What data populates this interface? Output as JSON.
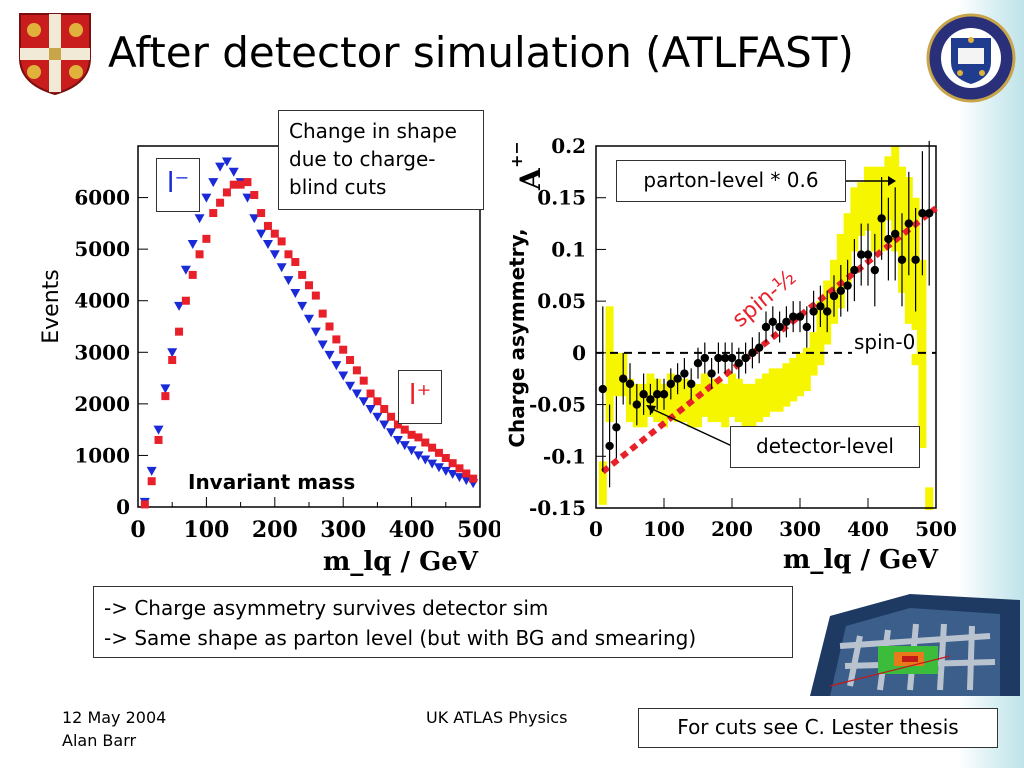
{
  "slide": {
    "title": "After detector simulation (ATLFAST)",
    "cuts_box": [
      "Change in shape",
      "due to charge-",
      "blind cuts"
    ],
    "bullets": [
      "-> Charge asymmetry survives detector sim",
      "-> Same shape as parton level (but with BG and smearing)"
    ],
    "footer_date": "12 May 2004",
    "footer_author": "Alan Barr",
    "footer_center": "UK ATLAS Physics",
    "footer_ref": "For cuts see C. Lester thesis",
    "colors": {
      "red": "#e8202a",
      "blue": "#1a2ad6",
      "yellow": "#f6f600"
    }
  },
  "chart_data": [
    {
      "type": "scatter",
      "title": "Invariant mass",
      "xlabel": "m_lq / GeV",
      "ylabel": "Events",
      "xlim": [
        0,
        500
      ],
      "ylim": [
        0,
        7000
      ],
      "xticks": [
        "0",
        "100",
        "200",
        "300",
        "400",
        "500"
      ],
      "yticks": [
        "0",
        "1000",
        "2000",
        "3000",
        "4000",
        "5000",
        "6000"
      ],
      "legend": [
        "l⁻",
        "l⁺"
      ],
      "x": [
        10,
        20,
        30,
        40,
        50,
        60,
        70,
        80,
        90,
        100,
        110,
        120,
        130,
        140,
        150,
        160,
        170,
        180,
        190,
        200,
        210,
        220,
        230,
        240,
        250,
        260,
        270,
        280,
        290,
        300,
        310,
        320,
        330,
        340,
        350,
        360,
        370,
        380,
        390,
        400,
        410,
        420,
        430,
        440,
        450,
        460,
        470,
        480,
        490
      ],
      "series": [
        {
          "name": "l⁻",
          "color": "blue",
          "marker": "triangle-down",
          "values": [
            100,
            700,
            1500,
            2300,
            3000,
            3900,
            4600,
            5100,
            5600,
            6000,
            6300,
            6600,
            6700,
            6500,
            6300,
            6000,
            5600,
            5300,
            5100,
            4900,
            4650,
            4400,
            4150,
            3900,
            3650,
            3400,
            3150,
            2950,
            2750,
            2550,
            2350,
            2200,
            2050,
            1900,
            1750,
            1600,
            1450,
            1300,
            1200,
            1100,
            1000,
            920,
            840,
            770,
            700,
            640,
            580,
            520,
            460
          ]
        },
        {
          "name": "l⁺",
          "color": "red",
          "marker": "square",
          "values": [
            50,
            500,
            1300,
            2150,
            2850,
            3400,
            4000,
            4500,
            4900,
            5200,
            5700,
            5900,
            6100,
            6250,
            6250,
            6300,
            6050,
            5700,
            5450,
            5300,
            5150,
            4900,
            4750,
            4500,
            4300,
            4100,
            3750,
            3500,
            3250,
            3050,
            2850,
            2650,
            2450,
            2200,
            2050,
            1900,
            1750,
            1600,
            1500,
            1400,
            1350,
            1250,
            1150,
            1050,
            950,
            850,
            750,
            650,
            550
          ]
        }
      ]
    },
    {
      "type": "scatter",
      "xlabel": "m_lq / GeV",
      "ylabel": "Charge asymmetry,",
      "ylabel_symbol": "A",
      "ylabel_sup": "+−",
      "xlim": [
        0,
        500
      ],
      "ylim": [
        -0.15,
        0.2
      ],
      "xticks": [
        "0",
        "100",
        "200",
        "300",
        "400",
        "500"
      ],
      "yticks": [
        "-0.15",
        "-0.1",
        "-0.05",
        "0",
        "0.05",
        "0.1",
        "0.15",
        "0.2"
      ],
      "annotations": {
        "parton": "parton-level * 0.6",
        "spin_half": "spin-½",
        "spin_zero": "spin-0",
        "detector": "detector-level"
      },
      "detector_level": {
        "x": [
          10,
          20,
          30,
          40,
          50,
          60,
          70,
          80,
          90,
          100,
          110,
          120,
          130,
          140,
          150,
          160,
          170,
          180,
          190,
          200,
          210,
          220,
          230,
          240,
          250,
          260,
          270,
          280,
          290,
          300,
          310,
          320,
          330,
          340,
          350,
          360,
          370,
          380,
          390,
          400,
          410,
          420,
          430,
          440,
          450,
          460,
          470,
          480,
          490
        ],
        "y": [
          -0.035,
          -0.09,
          -0.072,
          -0.025,
          -0.03,
          -0.05,
          -0.04,
          -0.045,
          -0.04,
          -0.04,
          -0.03,
          -0.025,
          -0.02,
          -0.03,
          -0.01,
          -0.005,
          -0.02,
          -0.005,
          -0.005,
          -0.005,
          -0.01,
          -0.005,
          0.0,
          0.005,
          0.025,
          0.03,
          0.025,
          0.03,
          0.035,
          0.035,
          0.025,
          0.04,
          0.045,
          0.04,
          0.055,
          0.06,
          0.065,
          0.08,
          0.095,
          0.095,
          0.08,
          0.13,
          0.11,
          0.115,
          0.09,
          0.125,
          0.09,
          0.135,
          0.135
        ],
        "err": [
          0.08,
          0.04,
          0.03,
          0.025,
          0.02,
          0.02,
          0.02,
          0.015,
          0.015,
          0.015,
          0.015,
          0.015,
          0.015,
          0.015,
          0.015,
          0.015,
          0.015,
          0.015,
          0.015,
          0.015,
          0.015,
          0.015,
          0.015,
          0.015,
          0.015,
          0.015,
          0.015,
          0.015,
          0.015,
          0.015,
          0.02,
          0.02,
          0.02,
          0.02,
          0.02,
          0.025,
          0.025,
          0.03,
          0.03,
          0.03,
          0.035,
          0.04,
          0.04,
          0.045,
          0.045,
          0.05,
          0.05,
          0.06,
          0.07
        ]
      },
      "parton_level": {
        "x": [
          10,
          20,
          30,
          40,
          50,
          60,
          70,
          80,
          90,
          100,
          110,
          120,
          130,
          140,
          150,
          160,
          170,
          180,
          190,
          200,
          210,
          220,
          230,
          240,
          250,
          260,
          270,
          280,
          290,
          300,
          310,
          320,
          330,
          340,
          350,
          360,
          370,
          380,
          390,
          400,
          410,
          420,
          430,
          440,
          450,
          460,
          470,
          480,
          490
        ],
        "y": [
          -0.125,
          -0.01,
          -0.02,
          -0.02,
          -0.045,
          -0.05,
          -0.05,
          -0.04,
          -0.045,
          -0.05,
          -0.04,
          -0.045,
          -0.045,
          -0.05,
          -0.05,
          -0.04,
          -0.045,
          -0.045,
          -0.05,
          -0.04,
          -0.045,
          -0.05,
          -0.05,
          -0.045,
          -0.04,
          -0.035,
          -0.035,
          -0.03,
          -0.025,
          -0.02,
          -0.015,
          0.0,
          0.02,
          0.04,
          0.06,
          0.08,
          0.1,
          0.13,
          0.14,
          0.15,
          0.14,
          0.14,
          0.16,
          0.15,
          0.12,
          0.1,
          0.07,
          0.0,
          -0.14
        ],
        "err": [
          0.02,
          0.055,
          0.02,
          0.02,
          0.02,
          0.02,
          0.02,
          0.02,
          0.02,
          0.02,
          0.02,
          0.02,
          0.02,
          0.02,
          0.02,
          0.02,
          0.02,
          0.02,
          0.02,
          0.02,
          0.02,
          0.02,
          0.02,
          0.02,
          0.02,
          0.02,
          0.02,
          0.02,
          0.02,
          0.02,
          0.02,
          0.02,
          0.03,
          0.03,
          0.03,
          0.035,
          0.035,
          0.03,
          0.025,
          0.03,
          0.04,
          0.04,
          0.03,
          0.05,
          0.06,
          0.07,
          0.08,
          0.09,
          0.01
        ]
      },
      "spin_half_line": {
        "x": [
          10,
          500
        ],
        "y": [
          -0.115,
          0.14
        ]
      },
      "spin_zero_line": {
        "y": 0
      }
    }
  ]
}
